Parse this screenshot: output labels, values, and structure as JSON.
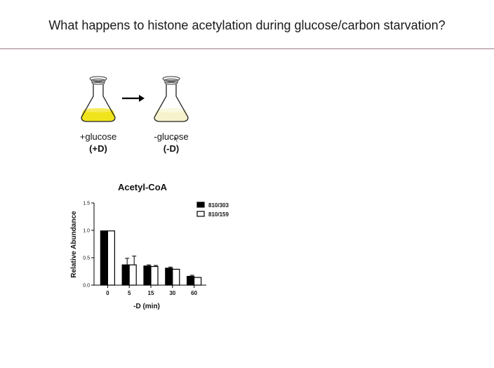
{
  "slide": {
    "title": "What happens to histone acetylation during glucose/carbon starvation?"
  },
  "flasks": [
    {
      "label": "+glucose",
      "code": "(+D)",
      "medium_color": "#f0e41c"
    },
    {
      "label": "-glucose",
      "code": "(-D)",
      "medium_color": "#f6f3cc"
    }
  ],
  "arrow_icon": "right-arrow",
  "chart_data": {
    "type": "bar",
    "title": "Acetyl-CoA",
    "xlabel": "-D (min)",
    "ylabel": "Relative Abundance",
    "categories": [
      "0",
      "5",
      "15",
      "30",
      "60"
    ],
    "ylim": [
      0,
      1.5
    ],
    "yticks": [
      "0.0",
      "0.5",
      "1.0",
      "1.5"
    ],
    "series": [
      {
        "name": "810/303",
        "color": "#000000",
        "values": [
          0.99,
          0.37,
          0.35,
          0.31,
          0.16
        ],
        "errors": [
          0.01,
          0.12,
          0.02,
          0.02,
          0.02
        ]
      },
      {
        "name": "810/159",
        "color": "#ffffff",
        "values": [
          0.99,
          0.37,
          0.34,
          0.29,
          0.14
        ],
        "errors": [
          0.01,
          0.16,
          0.02,
          0.01,
          0.01
        ]
      }
    ],
    "legend_position": "top-right",
    "grid": false
  }
}
